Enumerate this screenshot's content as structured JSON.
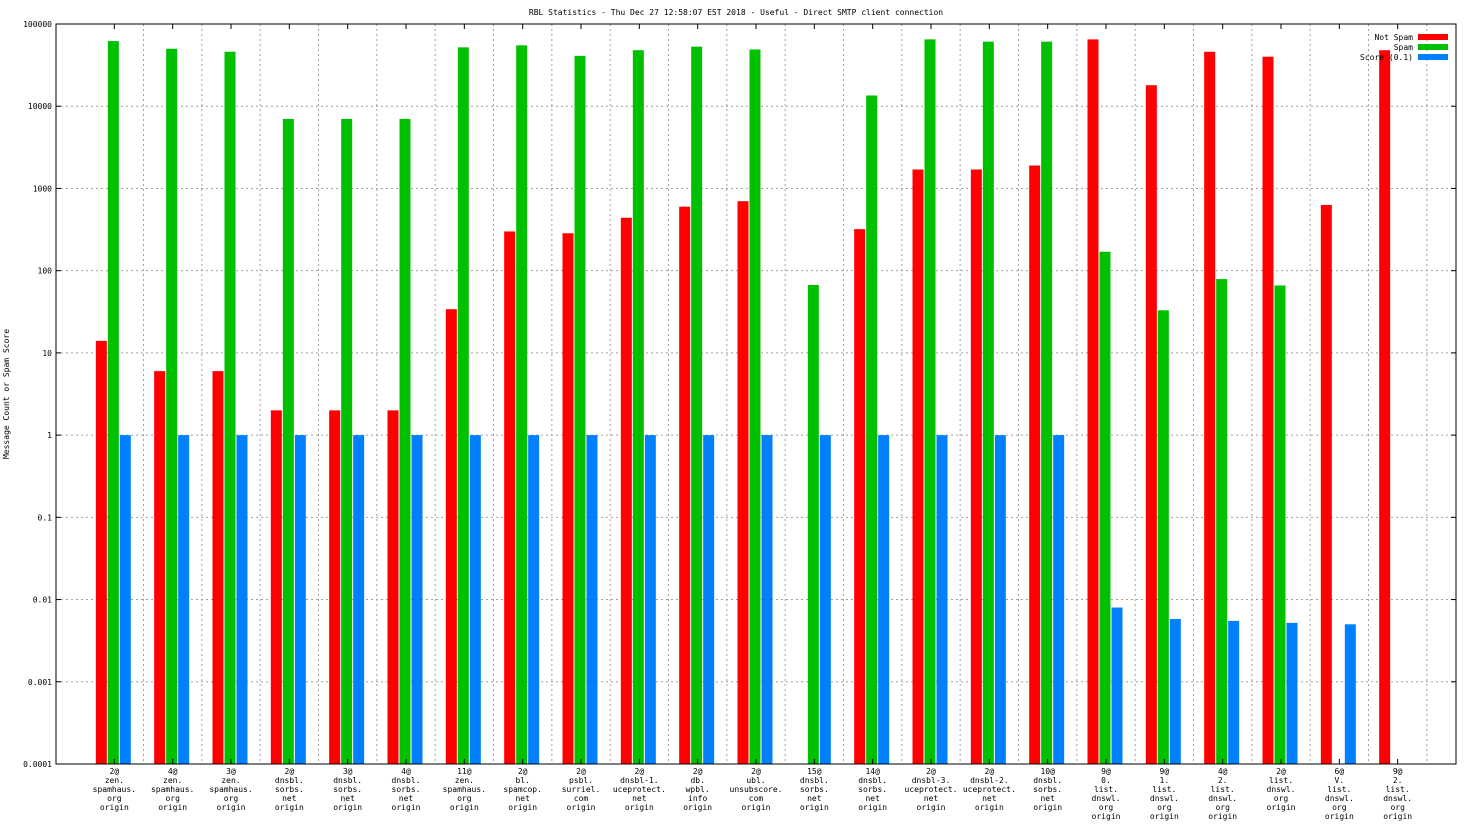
{
  "chart_data": {
    "type": "bar",
    "title": "RBL Statistics - Thu Dec 27 12:58:07 EST 2018 - Useful - Direct SMTP client connection",
    "ylabel": "Message Count or Spam Score",
    "xlabel": "",
    "yscale": "log",
    "ylim": [
      0.0001,
      100000
    ],
    "yticks": [
      "0.0001",
      "0.001",
      "0.01",
      "0.1",
      "1",
      "10",
      "100",
      "1000",
      "10000",
      "100000"
    ],
    "grid": true,
    "legend_position": "top-right",
    "categories": [
      [
        "2@",
        "zen.",
        "spamhaus.",
        "org",
        "origin"
      ],
      [
        "4@",
        "zen.",
        "spamhaus.",
        "org",
        "origin"
      ],
      [
        "3@",
        "zen.",
        "spamhaus.",
        "org",
        "origin"
      ],
      [
        "2@",
        "dnsbl.",
        "sorbs.",
        "net",
        "origin"
      ],
      [
        "3@",
        "dnsbl.",
        "sorbs.",
        "net",
        "origin"
      ],
      [
        "4@",
        "dnsbl.",
        "sorbs.",
        "net",
        "origin"
      ],
      [
        "11@",
        "zen.",
        "spamhaus.",
        "org",
        "origin"
      ],
      [
        "2@",
        "bl.",
        "spamcop.",
        "net",
        "origin"
      ],
      [
        "2@",
        "psbl.",
        "surriel.",
        "com",
        "origin"
      ],
      [
        "2@",
        "dnsbl-1.",
        "uceprotect.",
        "net",
        "origin"
      ],
      [
        "2@",
        "db.",
        "wpbl.",
        "info",
        "origin"
      ],
      [
        "2@",
        "ubl.",
        "unsubscore.",
        "com",
        "origin"
      ],
      [
        "15@",
        "dnsbl.",
        "sorbs.",
        "net",
        "origin"
      ],
      [
        "14@",
        "dnsbl.",
        "sorbs.",
        "net",
        "origin"
      ],
      [
        "2@",
        "dnsbl-3.",
        "uceprotect.",
        "net",
        "origin"
      ],
      [
        "2@",
        "dnsbl-2.",
        "uceprotect.",
        "net",
        "origin"
      ],
      [
        "10@",
        "dnsbl.",
        "sorbs.",
        "net",
        "origin"
      ],
      [
        "9@",
        "0.",
        "list.",
        "dnswl.",
        "org",
        "origin"
      ],
      [
        "9@",
        "1.",
        "list.",
        "dnswl.",
        "org",
        "origin"
      ],
      [
        "4@",
        "2.",
        "list.",
        "dnswl.",
        "org",
        "origin"
      ],
      [
        "2@",
        "list.",
        "dnswl.",
        "org",
        "origin"
      ],
      [
        "6@",
        "V.",
        "list.",
        "dnswl.",
        "org",
        "origin"
      ],
      [
        "9@",
        "2.",
        "list.",
        "dnswl.",
        "org",
        "origin"
      ]
    ],
    "series": [
      {
        "name": "Not Spam",
        "color": "#ff0000",
        "values": [
          14,
          6,
          6,
          2,
          2,
          2,
          34,
          300,
          285,
          440,
          600,
          700,
          null,
          320,
          1700,
          1700,
          1900,
          65000,
          18000,
          46000,
          40000,
          630,
          48000
        ]
      },
      {
        "name": "Spam",
        "color": "#00c000",
        "values": [
          62000,
          50000,
          46000,
          7000,
          7000,
          7000,
          52000,
          55000,
          41000,
          48000,
          53000,
          49000,
          67,
          13500,
          65000,
          61000,
          61000,
          170,
          33,
          79,
          66,
          null,
          null
        ]
      },
      {
        "name": "Score (0.1)",
        "color": "#0080ff",
        "values": [
          1,
          1,
          1,
          1,
          1,
          1,
          1,
          1,
          1,
          1,
          1,
          1,
          1,
          1,
          1,
          1,
          1,
          0.008,
          0.0058,
          0.0055,
          0.0052,
          0.005,
          null
        ]
      }
    ]
  }
}
